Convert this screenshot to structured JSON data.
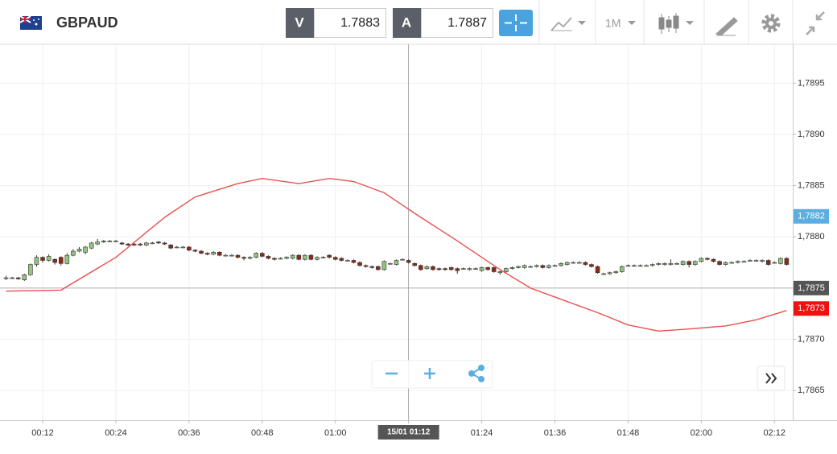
{
  "header": {
    "symbol": "GBPAUD",
    "sell": {
      "label": "V",
      "price": "1.7883"
    },
    "buy": {
      "label": "A",
      "price": "1.7887"
    },
    "timeframe": "1M"
  },
  "chart_data": {
    "type": "candlestick",
    "x": [
      "00:06",
      "00:07",
      "00:08",
      "00:09",
      "00:10",
      "00:11",
      "00:12",
      "00:13",
      "00:14",
      "00:15",
      "00:16",
      "00:17",
      "00:18",
      "00:19",
      "00:20",
      "00:21",
      "00:22",
      "00:23",
      "00:24",
      "00:25",
      "00:26",
      "00:27",
      "00:28",
      "00:29",
      "00:30",
      "00:31",
      "00:32",
      "00:33",
      "00:34",
      "00:35",
      "00:36",
      "00:37",
      "00:38",
      "00:39",
      "00:40",
      "00:41",
      "00:42",
      "00:43",
      "00:44",
      "00:45",
      "00:46",
      "00:47",
      "00:48",
      "00:49",
      "00:50",
      "00:51",
      "00:52",
      "00:53",
      "00:54",
      "00:55",
      "00:56",
      "00:57",
      "00:58",
      "00:59",
      "01:00",
      "01:01",
      "01:02",
      "01:03",
      "01:04",
      "01:05",
      "01:06",
      "01:07",
      "01:08",
      "01:09",
      "01:10",
      "01:11",
      "01:12",
      "01:13",
      "01:14",
      "01:15",
      "01:16",
      "01:17",
      "01:18",
      "01:19",
      "01:20",
      "01:21",
      "01:22",
      "01:23",
      "01:24",
      "01:25",
      "01:26",
      "01:27",
      "01:28",
      "01:29",
      "01:30",
      "01:31",
      "01:32",
      "01:33",
      "01:34",
      "01:35",
      "01:36",
      "01:37",
      "01:38",
      "01:39",
      "01:40",
      "01:41",
      "01:42",
      "01:43",
      "01:44",
      "01:45",
      "01:46",
      "01:47",
      "01:48",
      "01:49",
      "01:50",
      "01:51",
      "01:52",
      "01:53",
      "01:54",
      "01:55",
      "01:56",
      "01:57",
      "01:58",
      "01:59",
      "02:00",
      "02:01",
      "02:02",
      "02:03",
      "02:04",
      "02:05",
      "02:06",
      "02:07",
      "02:08",
      "02:09",
      "02:10",
      "02:11",
      "02:12",
      "02:13",
      "02:14"
    ],
    "open": [
      1.7876,
      1.7876,
      1.7876,
      1.78758,
      1.78763,
      1.78773,
      1.7878,
      1.78777,
      1.78778,
      1.7878,
      1.78774,
      1.78782,
      1.78786,
      1.78785,
      1.78789,
      1.78793,
      1.78795,
      1.78796,
      1.78796,
      1.78794,
      1.78793,
      1.78793,
      1.78793,
      1.78792,
      1.78794,
      1.78795,
      1.78794,
      1.78792,
      1.7879,
      1.7879,
      1.7879,
      1.78787,
      1.78786,
      1.78784,
      1.78783,
      1.78785,
      1.78782,
      1.78782,
      1.78782,
      1.7878,
      1.78779,
      1.7878,
      1.78784,
      1.78781,
      1.78779,
      1.78779,
      1.78779,
      1.78779,
      1.78782,
      1.78778,
      1.78782,
      1.78778,
      1.7878,
      1.78782,
      1.7878,
      1.78779,
      1.78777,
      1.78777,
      1.78775,
      1.78772,
      1.78771,
      1.78771,
      1.78768,
      1.78774,
      1.78773,
      1.78778,
      1.78777,
      1.78774,
      1.78772,
      1.78769,
      1.78771,
      1.78769,
      1.78769,
      1.7877,
      1.78769,
      1.78769,
      1.78768,
      1.78769,
      1.78767,
      1.7877,
      1.7877,
      1.78765,
      1.78766,
      1.78769,
      1.7877,
      1.7877,
      1.78771,
      1.78771,
      1.78772,
      1.7877,
      1.78772,
      1.78772,
      1.78773,
      1.78775,
      1.78775,
      1.78775,
      1.78773,
      1.78771,
      1.78764,
      1.78764,
      1.78765,
      1.78766,
      1.78772,
      1.78772,
      1.78772,
      1.78772,
      1.78772,
      1.78773,
      1.78773,
      1.78773,
      1.78774,
      1.78773,
      1.78776,
      1.78773,
      1.78776,
      1.78779,
      1.78778,
      1.78776,
      1.78773,
      1.78775,
      1.78775,
      1.78776,
      1.78777,
      1.78777,
      1.78776,
      1.78777,
      1.78775,
      1.78774,
      1.78779
    ],
    "high": [
      1.78762,
      1.78761,
      1.78761,
      1.78764,
      1.78774,
      1.78782,
      1.78781,
      1.78783,
      1.78779,
      1.78781,
      1.78784,
      1.78788,
      1.7879,
      1.78791,
      1.78795,
      1.78798,
      1.78797,
      1.78797,
      1.78797,
      1.78795,
      1.78794,
      1.78794,
      1.78794,
      1.78795,
      1.78795,
      1.78796,
      1.78795,
      1.78793,
      1.78791,
      1.78791,
      1.78791,
      1.78788,
      1.78787,
      1.78785,
      1.78786,
      1.78786,
      1.78783,
      1.78783,
      1.78783,
      1.78781,
      1.78781,
      1.78785,
      1.78785,
      1.78782,
      1.7878,
      1.7878,
      1.78781,
      1.78783,
      1.78783,
      1.78783,
      1.78783,
      1.78781,
      1.78781,
      1.78783,
      1.78781,
      1.7878,
      1.78778,
      1.78778,
      1.78776,
      1.78773,
      1.78772,
      1.78772,
      1.78777,
      1.78775,
      1.78778,
      1.78779,
      1.78778,
      1.78775,
      1.78773,
      1.78772,
      1.78772,
      1.7877,
      1.7877,
      1.78771,
      1.7877,
      1.7877,
      1.7877,
      1.7877,
      1.78771,
      1.78771,
      1.78771,
      1.78767,
      1.7877,
      1.78771,
      1.78772,
      1.78773,
      1.78772,
      1.78773,
      1.78773,
      1.78773,
      1.78773,
      1.78775,
      1.78776,
      1.78776,
      1.78776,
      1.78776,
      1.78774,
      1.78772,
      1.78765,
      1.78766,
      1.78767,
      1.78772,
      1.78773,
      1.78773,
      1.78773,
      1.78773,
      1.78774,
      1.78775,
      1.78775,
      1.78778,
      1.78775,
      1.78777,
      1.78777,
      1.78777,
      1.7878,
      1.7878,
      1.78779,
      1.78777,
      1.78776,
      1.78776,
      1.78777,
      1.78777,
      1.78778,
      1.78778,
      1.78778,
      1.78778,
      1.78776,
      1.7878,
      1.7878
    ],
    "low": [
      1.78758,
      1.78759,
      1.78758,
      1.78757,
      1.78762,
      1.78771,
      1.78775,
      1.78776,
      1.78773,
      1.78772,
      1.78773,
      1.78781,
      1.78785,
      1.78783,
      1.78788,
      1.78792,
      1.78794,
      1.78795,
      1.78795,
      1.78792,
      1.78791,
      1.78791,
      1.78791,
      1.78791,
      1.78793,
      1.78793,
      1.78792,
      1.78788,
      1.78789,
      1.78789,
      1.78786,
      1.78785,
      1.78783,
      1.78782,
      1.78782,
      1.78781,
      1.78781,
      1.78781,
      1.78779,
      1.78777,
      1.78778,
      1.78779,
      1.7878,
      1.78778,
      1.78777,
      1.78778,
      1.78778,
      1.78778,
      1.78777,
      1.78777,
      1.78777,
      1.78777,
      1.78779,
      1.78779,
      1.78777,
      1.78776,
      1.78776,
      1.78774,
      1.78771,
      1.7877,
      1.78769,
      1.78767,
      1.78767,
      1.78773,
      1.78772,
      1.78777,
      1.78774,
      1.78771,
      1.78767,
      1.78768,
      1.78767,
      1.78767,
      1.78767,
      1.78767,
      1.78764,
      1.78768,
      1.78767,
      1.78768,
      1.78766,
      1.78767,
      1.78765,
      1.78763,
      1.78765,
      1.78768,
      1.78769,
      1.78769,
      1.7877,
      1.7877,
      1.78769,
      1.78769,
      1.78771,
      1.78771,
      1.78772,
      1.78774,
      1.78774,
      1.78772,
      1.7877,
      1.78764,
      1.78763,
      1.78763,
      1.78764,
      1.78765,
      1.78771,
      1.78771,
      1.78771,
      1.78771,
      1.78771,
      1.78772,
      1.78772,
      1.78772,
      1.78773,
      1.78772,
      1.7877,
      1.78772,
      1.78775,
      1.78777,
      1.78775,
      1.78772,
      1.78772,
      1.78774,
      1.78774,
      1.78775,
      1.78776,
      1.78776,
      1.78775,
      1.78772,
      1.78774,
      1.78773,
      1.78772
    ],
    "close": [
      1.7876,
      1.7876,
      1.78759,
      1.78763,
      1.78773,
      1.7878,
      1.78777,
      1.78781,
      1.78775,
      1.78774,
      1.78782,
      1.78786,
      1.78788,
      1.7879,
      1.78794,
      1.78795,
      1.78796,
      1.78796,
      1.78796,
      1.78793,
      1.78792,
      1.78792,
      1.78792,
      1.78794,
      1.78794,
      1.78794,
      1.78793,
      1.78789,
      1.7879,
      1.7879,
      1.78787,
      1.78786,
      1.78784,
      1.78783,
      1.78785,
      1.78782,
      1.78782,
      1.78782,
      1.7878,
      1.78779,
      1.7878,
      1.78784,
      1.78781,
      1.78779,
      1.78778,
      1.78779,
      1.7878,
      1.78782,
      1.78778,
      1.78782,
      1.78778,
      1.7878,
      1.7878,
      1.7878,
      1.78778,
      1.78777,
      1.78777,
      1.78775,
      1.78772,
      1.78771,
      1.7877,
      1.78768,
      1.78776,
      1.78774,
      1.78777,
      1.78778,
      1.78775,
      1.78772,
      1.78768,
      1.78771,
      1.78768,
      1.78768,
      1.78768,
      1.78768,
      1.78767,
      1.78769,
      1.78769,
      1.78769,
      1.7877,
      1.78768,
      1.78766,
      1.78766,
      1.78769,
      1.7877,
      1.78771,
      1.78772,
      1.78771,
      1.78772,
      1.7877,
      1.78772,
      1.78772,
      1.78774,
      1.78775,
      1.78775,
      1.78775,
      1.78773,
      1.78771,
      1.78765,
      1.78764,
      1.78765,
      1.78766,
      1.78771,
      1.78772,
      1.78772,
      1.78772,
      1.78772,
      1.78773,
      1.78774,
      1.78774,
      1.78774,
      1.78774,
      1.78776,
      1.78773,
      1.78776,
      1.78779,
      1.78778,
      1.78776,
      1.78773,
      1.78775,
      1.78775,
      1.78776,
      1.78776,
      1.78777,
      1.78777,
      1.78777,
      1.78773,
      1.78775,
      1.78779,
      1.78773
    ],
    "up_color": "#93c47d",
    "down_color": "#8b2b16",
    "moving_average": {
      "color": "#e8514e",
      "x": [
        "00:06",
        "00:15",
        "00:24",
        "00:32",
        "00:37",
        "00:44",
        "00:48",
        "00:54",
        "00:59",
        "01:03",
        "01:08",
        "01:13",
        "01:20",
        "01:27",
        "01:32",
        "01:37",
        "01:43",
        "01:48",
        "01:53",
        "01:58",
        "02:04",
        "02:09",
        "02:14"
      ],
      "values": [
        1.78747,
        1.78748,
        1.7878,
        1.78819,
        1.78839,
        1.78852,
        1.78857,
        1.78852,
        1.78857,
        1.78854,
        1.78843,
        1.78823,
        1.78796,
        1.78768,
        1.7875,
        1.78739,
        1.78726,
        1.78714,
        1.78708,
        1.7871,
        1.78713,
        1.78719,
        1.78728
      ]
    },
    "xlim": [
      "00:05",
      "02:15"
    ],
    "xticks": [
      "00:12",
      "00:24",
      "00:36",
      "00:48",
      "01:00",
      "01:12",
      "01:24",
      "01:36",
      "01:48",
      "02:00",
      "02:12"
    ],
    "ylim": [
      1.78621,
      1.78988
    ],
    "yticks": [
      {
        "value": 1.7865,
        "label": "1,7865"
      },
      {
        "value": 1.787,
        "label": "1,7870"
      },
      {
        "value": 1.7875,
        "label": "1,7875"
      },
      {
        "value": 1.788,
        "label": "1,7880"
      },
      {
        "value": 1.7885,
        "label": "1,7885"
      },
      {
        "value": 1.789,
        "label": "1,7890"
      },
      {
        "value": 1.7895,
        "label": "1,7895"
      }
    ],
    "grid": true,
    "crosshair": {
      "price": {
        "value": 1.7875,
        "label": "1,7875"
      },
      "time": "01:12",
      "time_label": "15/01 01:12"
    },
    "price_labels": [
      {
        "value": 1.7882,
        "label": "1,7882",
        "color": "#5aaee0"
      },
      {
        "value": 1.7873,
        "label": "1,7873",
        "color": "#f01010"
      }
    ]
  }
}
